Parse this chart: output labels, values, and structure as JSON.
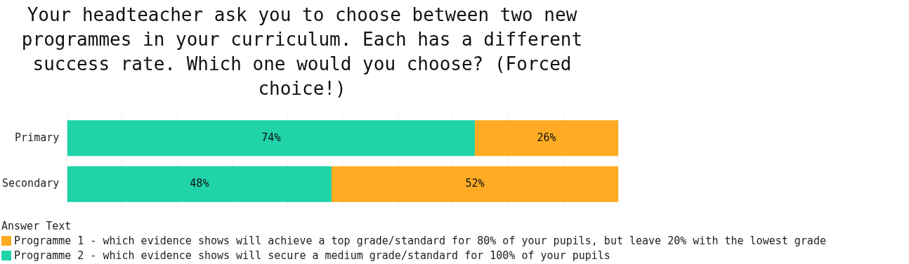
{
  "chart_data": {
    "type": "bar",
    "orientation": "horizontal",
    "stacked": true,
    "title": "Your headteacher ask you to choose between two new programmes in your curriculum. Each has a different success rate. Which one would you choose? (Forced choice!)",
    "categories": [
      "Primary",
      "Secondary"
    ],
    "series": [
      {
        "name": "Programme 2 - which evidence shows will secure a medium grade/standard for 100% of your pupils",
        "color": "#20d3a8",
        "values": [
          74,
          48
        ],
        "value_labels": [
          "74%",
          "48%"
        ]
      },
      {
        "name": "Programme 1 - which evidence shows will achieve a top grade/standard for 80% of your pupils, but leave 20% with the lowest grade",
        "color": "#ffab23",
        "values": [
          26,
          52
        ],
        "value_labels": [
          "26%",
          "52%"
        ]
      }
    ],
    "tick_labels": "y",
    "grid": "x",
    "legend": "bottom",
    "legend_title": "Answer Text"
  }
}
